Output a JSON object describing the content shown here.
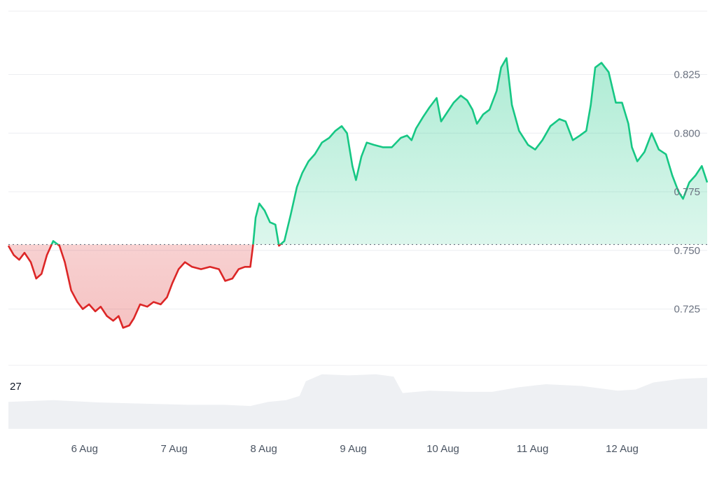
{
  "chart_data": {
    "type": "area",
    "title": "",
    "xlabel": "",
    "ylabel": "",
    "x_ticks": [
      "6 Aug",
      "7 Aug",
      "8 Aug",
      "9 Aug",
      "10 Aug",
      "11 Aug",
      "12 Aug"
    ],
    "y_ticks": [
      "0.725",
      "0.750",
      "0.775",
      "0.800",
      "0.825"
    ],
    "ylim": [
      0.701,
      0.852
    ],
    "baseline": 0.7525,
    "colors": {
      "up": "#16c784",
      "down": "#dc2626",
      "grid": "#eceef1",
      "baseline": "#6b7280",
      "volume": "#eef0f3"
    },
    "price_series": {
      "name": "",
      "points": [
        [
          0.0,
          0.752
        ],
        [
          0.06,
          0.748
        ],
        [
          0.12,
          0.746
        ],
        [
          0.18,
          0.749
        ],
        [
          0.25,
          0.745
        ],
        [
          0.31,
          0.738
        ],
        [
          0.37,
          0.74
        ],
        [
          0.43,
          0.748
        ],
        [
          0.5,
          0.754
        ],
        [
          0.57,
          0.752
        ],
        [
          0.63,
          0.745
        ],
        [
          0.7,
          0.733
        ],
        [
          0.77,
          0.728
        ],
        [
          0.83,
          0.725
        ],
        [
          0.9,
          0.727
        ],
        [
          0.97,
          0.724
        ],
        [
          1.03,
          0.726
        ],
        [
          1.1,
          0.722
        ],
        [
          1.17,
          0.72
        ],
        [
          1.23,
          0.722
        ],
        [
          1.28,
          0.717
        ],
        [
          1.35,
          0.718
        ],
        [
          1.4,
          0.721
        ],
        [
          1.47,
          0.727
        ],
        [
          1.55,
          0.726
        ],
        [
          1.62,
          0.728
        ],
        [
          1.7,
          0.727
        ],
        [
          1.77,
          0.73
        ],
        [
          1.83,
          0.736
        ],
        [
          1.9,
          0.742
        ],
        [
          1.97,
          0.745
        ],
        [
          2.05,
          0.743
        ],
        [
          2.15,
          0.742
        ],
        [
          2.25,
          0.743
        ],
        [
          2.35,
          0.742
        ],
        [
          2.42,
          0.737
        ],
        [
          2.5,
          0.738
        ],
        [
          2.57,
          0.742
        ],
        [
          2.64,
          0.743
        ],
        [
          2.7,
          0.743
        ],
        [
          2.73,
          0.752
        ],
        [
          2.76,
          0.764
        ],
        [
          2.8,
          0.77
        ],
        [
          2.86,
          0.767
        ],
        [
          2.92,
          0.762
        ],
        [
          2.98,
          0.761
        ],
        [
          3.02,
          0.752
        ],
        [
          3.08,
          0.754
        ],
        [
          3.15,
          0.765
        ],
        [
          3.22,
          0.777
        ],
        [
          3.28,
          0.783
        ],
        [
          3.35,
          0.788
        ],
        [
          3.42,
          0.791
        ],
        [
          3.5,
          0.796
        ],
        [
          3.58,
          0.798
        ],
        [
          3.65,
          0.801
        ],
        [
          3.72,
          0.803
        ],
        [
          3.78,
          0.8
        ],
        [
          3.84,
          0.786
        ],
        [
          3.88,
          0.78
        ],
        [
          3.94,
          0.79
        ],
        [
          4.0,
          0.796
        ],
        [
          4.08,
          0.795
        ],
        [
          4.18,
          0.794
        ],
        [
          4.28,
          0.794
        ],
        [
          4.38,
          0.798
        ],
        [
          4.45,
          0.799
        ],
        [
          4.5,
          0.797
        ],
        [
          4.55,
          0.802
        ],
        [
          4.63,
          0.807
        ],
        [
          4.7,
          0.811
        ],
        [
          4.78,
          0.815
        ],
        [
          4.83,
          0.805
        ],
        [
          4.9,
          0.809
        ],
        [
          4.97,
          0.813
        ],
        [
          5.05,
          0.816
        ],
        [
          5.12,
          0.814
        ],
        [
          5.18,
          0.81
        ],
        [
          5.23,
          0.804
        ],
        [
          5.3,
          0.808
        ],
        [
          5.37,
          0.81
        ],
        [
          5.45,
          0.818
        ],
        [
          5.5,
          0.828
        ],
        [
          5.56,
          0.832
        ],
        [
          5.62,
          0.812
        ],
        [
          5.7,
          0.801
        ],
        [
          5.8,
          0.795
        ],
        [
          5.88,
          0.793
        ],
        [
          5.96,
          0.797
        ],
        [
          6.05,
          0.803
        ],
        [
          6.15,
          0.806
        ],
        [
          6.22,
          0.805
        ],
        [
          6.3,
          0.797
        ],
        [
          6.38,
          0.799
        ],
        [
          6.45,
          0.801
        ],
        [
          6.5,
          0.812
        ],
        [
          6.55,
          0.828
        ],
        [
          6.62,
          0.83
        ],
        [
          6.7,
          0.826
        ],
        [
          6.78,
          0.813
        ],
        [
          6.85,
          0.813
        ],
        [
          6.92,
          0.804
        ],
        [
          6.96,
          0.794
        ],
        [
          7.02,
          0.788
        ],
        [
          7.1,
          0.792
        ],
        [
          7.18,
          0.8
        ],
        [
          7.26,
          0.793
        ],
        [
          7.34,
          0.791
        ],
        [
          7.41,
          0.782
        ],
        [
          7.48,
          0.775
        ],
        [
          7.53,
          0.772
        ],
        [
          7.6,
          0.779
        ],
        [
          7.67,
          0.782
        ],
        [
          7.74,
          0.786
        ],
        [
          7.8,
          0.779
        ]
      ]
    },
    "volume_series": {
      "name": "",
      "label": "27",
      "points": [
        [
          0.0,
          0.45
        ],
        [
          0.5,
          0.48
        ],
        [
          1.0,
          0.44
        ],
        [
          1.5,
          0.42
        ],
        [
          2.0,
          0.4
        ],
        [
          2.4,
          0.4
        ],
        [
          2.7,
          0.38
        ],
        [
          2.9,
          0.45
        ],
        [
          3.1,
          0.48
        ],
        [
          3.25,
          0.55
        ],
        [
          3.32,
          0.8
        ],
        [
          3.5,
          0.92
        ],
        [
          3.8,
          0.9
        ],
        [
          4.1,
          0.92
        ],
        [
          4.3,
          0.88
        ],
        [
          4.4,
          0.6
        ],
        [
          4.7,
          0.64
        ],
        [
          5.1,
          0.62
        ],
        [
          5.4,
          0.62
        ],
        [
          5.7,
          0.7
        ],
        [
          6.0,
          0.75
        ],
        [
          6.4,
          0.72
        ],
        [
          6.8,
          0.64
        ],
        [
          7.0,
          0.66
        ],
        [
          7.2,
          0.78
        ],
        [
          7.5,
          0.84
        ],
        [
          7.8,
          0.86
        ]
      ]
    }
  }
}
